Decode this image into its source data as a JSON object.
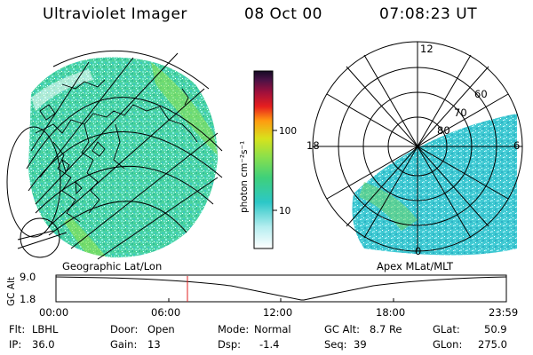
{
  "header": {
    "title": "Ultraviolet Imager",
    "date": "08 Oct 00",
    "time": "07:08:23 UT"
  },
  "colorbar": {
    "label": "photon cm⁻²s⁻¹",
    "ticks": [
      "100",
      "10"
    ]
  },
  "left_panel": {
    "caption": "Geographic Lat/Lon"
  },
  "right_panel": {
    "caption": "Apex MLat/MLT",
    "mlt_labels": {
      "top": "12",
      "left": "18",
      "right": "6",
      "bottom": "0"
    },
    "lat_labels": [
      "60",
      "70",
      "80"
    ]
  },
  "altitude_plot": {
    "label": "GC Alt",
    "y_ticks": [
      "9.0",
      "1.8"
    ],
    "x_ticks": [
      "00:00",
      "06:00",
      "12:00",
      "18:00",
      "23:59"
    ],
    "marker_time": "07:08"
  },
  "footer": {
    "filter_label": "Flt:",
    "filter_value": "LBHL",
    "ip_label": "IP:",
    "ip_value": "36.0",
    "door_label": "Door:",
    "door_value": "Open",
    "gain_label": "Gain:",
    "gain_value": "13",
    "mode_label": "Mode:",
    "mode_value": "Normal",
    "dsp_label": "Dsp:",
    "dsp_value": "-1.4",
    "gcalt_label": "GC Alt:",
    "gcalt_value": "8.7 Re",
    "seq_label": "Seq:",
    "seq_value": "39",
    "glat_label": "GLat:",
    "glat_value": "50.9",
    "glon_label": "GLon:",
    "glon_value": "275.0"
  },
  "colors": {
    "accent_marker": "#e02020",
    "map_green": "#3fd07a",
    "map_cyan": "#4cc8d4"
  }
}
